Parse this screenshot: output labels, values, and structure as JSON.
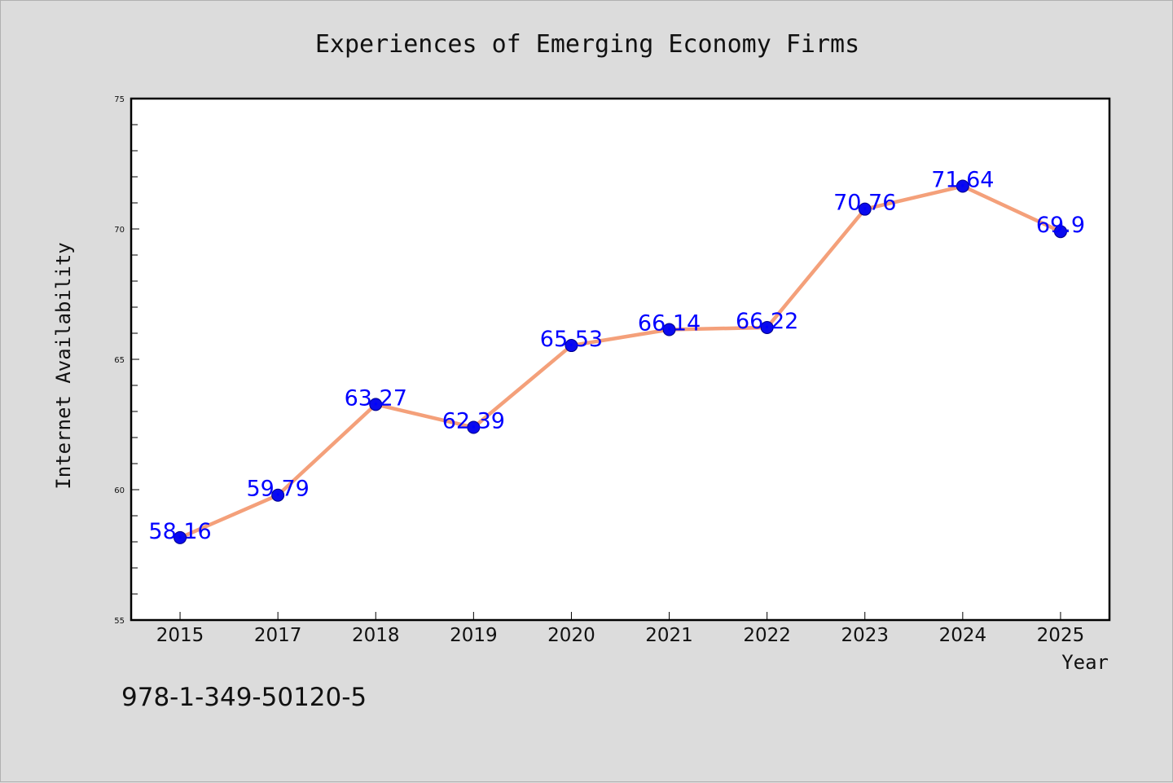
{
  "chart_data": {
    "type": "line",
    "title": "Experiences of Emerging Economy Firms",
    "xlabel": "Year",
    "ylabel": "Internet Availability",
    "categories": [
      "2015",
      "2017",
      "2018",
      "2019",
      "2020",
      "2021",
      "2022",
      "2023",
      "2024",
      "2025"
    ],
    "series": [
      {
        "values": [
          58.16,
          59.79,
          63.27,
          62.39,
          65.53,
          66.14,
          66.22,
          70.76,
          71.64,
          69.9
        ],
        "data_labels": [
          "58.16",
          "59.79",
          "63.27",
          "62.39",
          "65.53",
          "66.14",
          "66.22",
          "70.76",
          "71.64",
          "69.9"
        ],
        "line_color": "#f4a07a",
        "marker_color": "#0a0aee"
      }
    ],
    "ylim": [
      55,
      75
    ],
    "y_ticks": [
      55,
      60,
      65,
      70,
      75
    ],
    "y_tick_labels": [
      "55",
      "60",
      "65",
      "70",
      "75"
    ],
    "grid": false,
    "legend": "none",
    "label_color": "#0000ff",
    "plot_background": "#ffffff",
    "figure_background": "#dcdcdc"
  },
  "footnote": "978-1-349-50120-5"
}
